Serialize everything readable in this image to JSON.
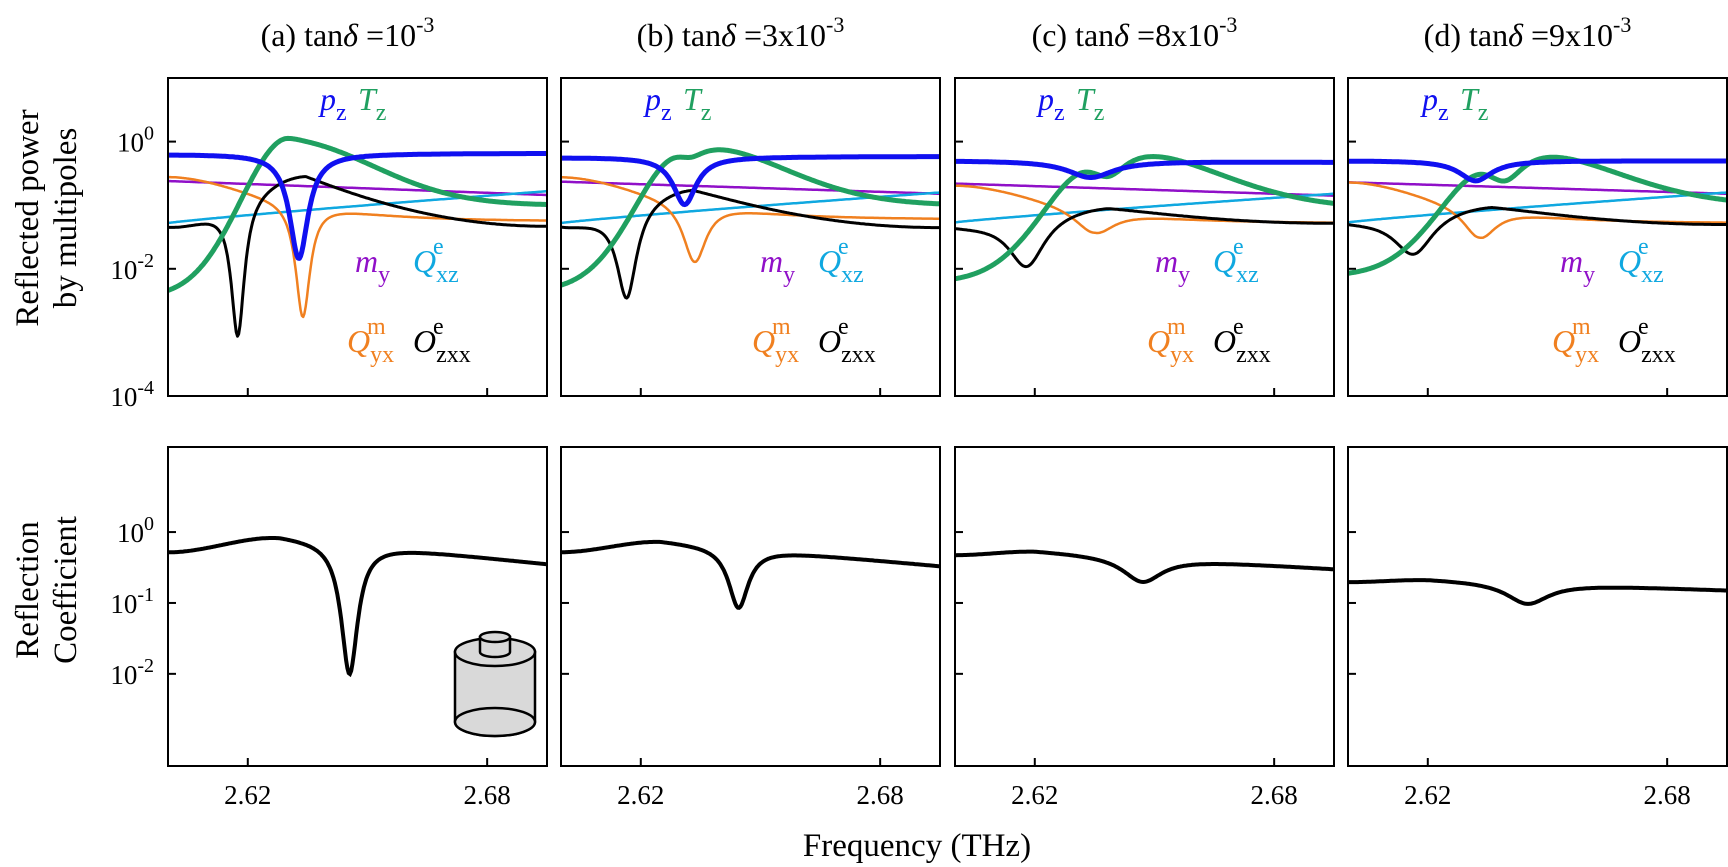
{
  "chart_data": {
    "type": "line",
    "ylabel_top_line1": "Reflected power",
    "ylabel_top_line2": "by multipoles",
    "ylabel_bottom_line1": "Reflection",
    "ylabel_bottom_line2": "Coefficient",
    "xlabel": "Frequency (THz)",
    "xlim": [
      2.6,
      2.695
    ],
    "xticks": [
      {
        "value": 2.62,
        "label": "2.62"
      },
      {
        "value": 2.68,
        "label": "2.68"
      }
    ],
    "top_ylim_log10": [
      -4,
      1
    ],
    "top_yticks": [
      {
        "value": 0,
        "base": "10",
        "exp": "0"
      },
      {
        "value": -2,
        "base": "10",
        "exp": "-2"
      },
      {
        "value": -4,
        "base": "10",
        "exp": "-4"
      }
    ],
    "bottom_ylim_log10": [
      -3.3,
      1.2
    ],
    "bottom_yticks": [
      {
        "value": 0,
        "base": "10",
        "exp": "0"
      },
      {
        "value": -1,
        "base": "10",
        "exp": "-1"
      },
      {
        "value": -2,
        "base": "10",
        "exp": "-2"
      }
    ],
    "colors": {
      "pz": "#1010f0",
      "Tz": "#20a060",
      "my": "#9010c8",
      "Qxz": "#10a8e0",
      "Qyx": "#f08020",
      "Ozxx": "#000000",
      "R": "#000000"
    },
    "legend_labels": {
      "pz": {
        "main": "p",
        "sub": "z"
      },
      "Tz": {
        "main": "T",
        "sub": "z"
      },
      "my": {
        "main": "m",
        "sub": "y"
      },
      "Qxz": {
        "main": "Q",
        "sub": "xz",
        "sup": "e"
      },
      "Qyx": {
        "main": "Q",
        "sub": "yx",
        "sup": "m"
      },
      "Ozxx": {
        "main": "O",
        "sub": "zxx",
        "sup": "e"
      }
    },
    "panels": [
      {
        "label": "(a)",
        "title_main": "tan",
        "title_delta": "δ",
        "title_eq": " =",
        "title_coef": "10",
        "title_exp": "-3",
        "series": {
          "pz": {
            "f0": 2.6328,
            "w": 0.0028,
            "depth": 1.65,
            "b0": -0.2,
            "b1": -0.01
          },
          "Tz": {
            "f0": 2.63,
            "w": 0.009,
            "amp": 0.05,
            "rw": 0.0046,
            "bw": 0.017,
            "lowEnd": -2.45,
            "highEnd": -1.0
          },
          "my": {
            "s": -0.62,
            "e": -0.84
          },
          "Qxz": {
            "s": -1.28,
            "e": -0.78
          },
          "Qyx": {
            "f0": 2.6338,
            "w": 0.0022,
            "depth": 1.85,
            "base": -0.55,
            "endV": -1.25,
            "decay": 0.018
          },
          "Ozxx": {
            "f0": 2.6175,
            "w": 0.002,
            "depth": 2.15,
            "s": -1.32,
            "peakF": 2.6345,
            "peakV": -0.52,
            "endV": -1.33
          },
          "R": {
            "s": -0.28,
            "pf": 2.628,
            "pv": -0.05,
            "f0": 2.6455,
            "w": 0.0025,
            "depth": 1.85,
            "endV": -0.45
          }
        }
      },
      {
        "label": "(b)",
        "title_main": "tan",
        "title_delta": "δ",
        "title_eq": " =",
        "title_coef": "3x10",
        "title_exp": "-3",
        "series": {
          "pz": {
            "f0": 2.631,
            "w": 0.0035,
            "depth": 0.75,
            "b0": -0.25,
            "b1": -0.01
          },
          "Tz": {
            "f0": 2.632,
            "w": 0.011,
            "amp": -0.25,
            "rw": 0.005,
            "bw": 0.018,
            "lowEnd": -2.35,
            "highEnd": -1.0
          },
          "my": {
            "s": -0.63,
            "e": -0.82
          },
          "Qxz": {
            "s": -1.28,
            "e": -0.8
          },
          "Qyx": {
            "f0": 2.6335,
            "w": 0.0035,
            "depth": 1.0,
            "base": -0.55,
            "endV": -1.22,
            "decay": 0.018
          },
          "Ozxx": {
            "f0": 2.6165,
            "w": 0.003,
            "depth": 1.45,
            "s": -1.3,
            "peakF": 2.633,
            "peakV": -0.72,
            "endV": -1.35
          },
          "R": {
            "s": -0.28,
            "pf": 2.625,
            "pv": -0.12,
            "f0": 2.6445,
            "w": 0.003,
            "depth": 0.85,
            "endV": -0.48
          }
        }
      },
      {
        "label": "(c)",
        "title_main": "tan",
        "title_delta": "δ",
        "title_eq": " =",
        "title_coef": "8x10",
        "title_exp": "-3",
        "series": {
          "pz": {
            "f0": 2.634,
            "w": 0.007,
            "depth": 0.26,
            "b0": -0.3,
            "b1": -0.05
          },
          "Tz": {
            "f0": 2.638,
            "w": 0.014,
            "amp": -0.55,
            "rw": 0.0065,
            "bw": 0.02,
            "lowEnd": -2.2,
            "highEnd": -1.05
          },
          "my": {
            "s": -0.66,
            "e": -0.85
          },
          "Qxz": {
            "s": -1.27,
            "e": -0.82
          },
          "Qyx": {
            "f0": 2.635,
            "w": 0.006,
            "depth": 0.45,
            "base": -0.68,
            "endV": -1.28,
            "decay": 0.018
          },
          "Ozxx": {
            "f0": 2.618,
            "w": 0.0055,
            "depth": 0.8,
            "s": -1.3,
            "peakF": 2.6385,
            "peakV": -1.0,
            "endV": -1.28
          },
          "R": {
            "s": -0.32,
            "pf": 2.62,
            "pv": -0.26,
            "f0": 2.647,
            "w": 0.006,
            "depth": 0.35,
            "endV": -0.52
          }
        }
      },
      {
        "label": "(d)",
        "title_main": "tan",
        "title_delta": "δ",
        "title_eq": " =",
        "title_coef": "9x10",
        "title_exp": "-3",
        "series": {
          "pz": {
            "f0": 2.632,
            "w": 0.005,
            "depth": 0.32,
            "b0": -0.3,
            "b1": -0.03
          },
          "Tz": {
            "f0": 2.639,
            "w": 0.014,
            "amp": -0.62,
            "rw": 0.0065,
            "bw": 0.02,
            "lowEnd": -2.1,
            "highEnd": -1.0
          },
          "my": {
            "s": -0.64,
            "e": -0.82
          },
          "Qxz": {
            "s": -1.27,
            "e": -0.8
          },
          "Qyx": {
            "f0": 2.633,
            "w": 0.005,
            "depth": 0.55,
            "base": -0.63,
            "endV": -1.28,
            "decay": 0.018
          },
          "Ozxx": {
            "f0": 2.6165,
            "w": 0.006,
            "depth": 0.65,
            "s": -1.23,
            "peakF": 2.636,
            "peakV": -0.98,
            "endV": -1.3
          },
          "R": {
            "s": -0.7,
            "pf": 2.62,
            "pv": -0.66,
            "f0": 2.645,
            "w": 0.0065,
            "depth": 0.3,
            "endV": -0.82
          }
        }
      }
    ]
  }
}
